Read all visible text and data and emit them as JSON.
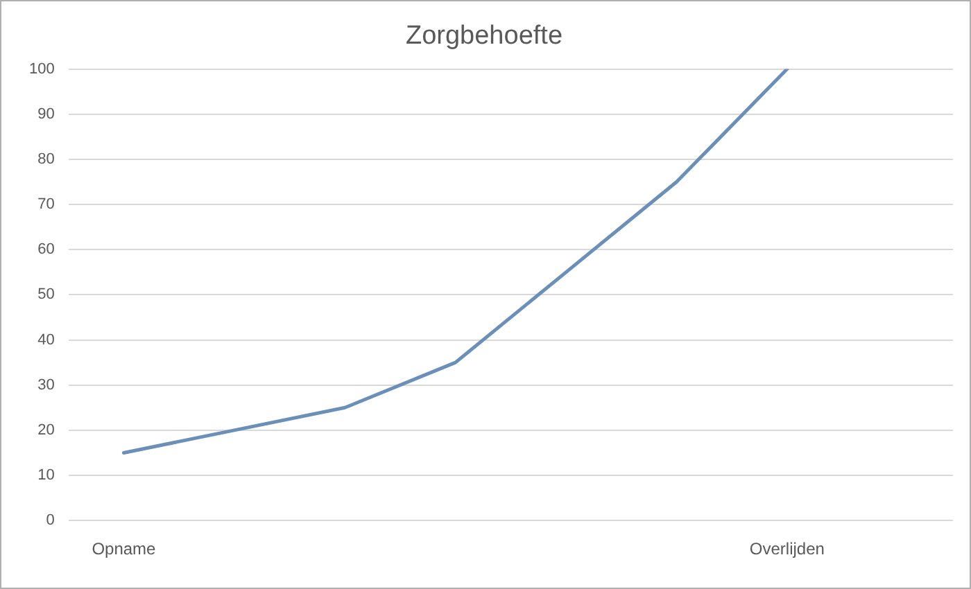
{
  "chart_data": {
    "type": "line",
    "title": "Zorgbehoefte",
    "categories": [
      "Opname",
      null,
      null,
      null,
      null,
      null,
      "Overlijden",
      null
    ],
    "series": [
      {
        "color": "#6a8fb8",
        "values": [
          15,
          20,
          25,
          35,
          55,
          75,
          100,
          null
        ]
      }
    ],
    "ylim": [
      0,
      100
    ],
    "yticks": [
      0,
      10,
      20,
      30,
      40,
      50,
      60,
      70,
      80,
      90,
      100
    ],
    "grid": "y",
    "legend": false,
    "marker": "none",
    "line_style": "solid"
  }
}
